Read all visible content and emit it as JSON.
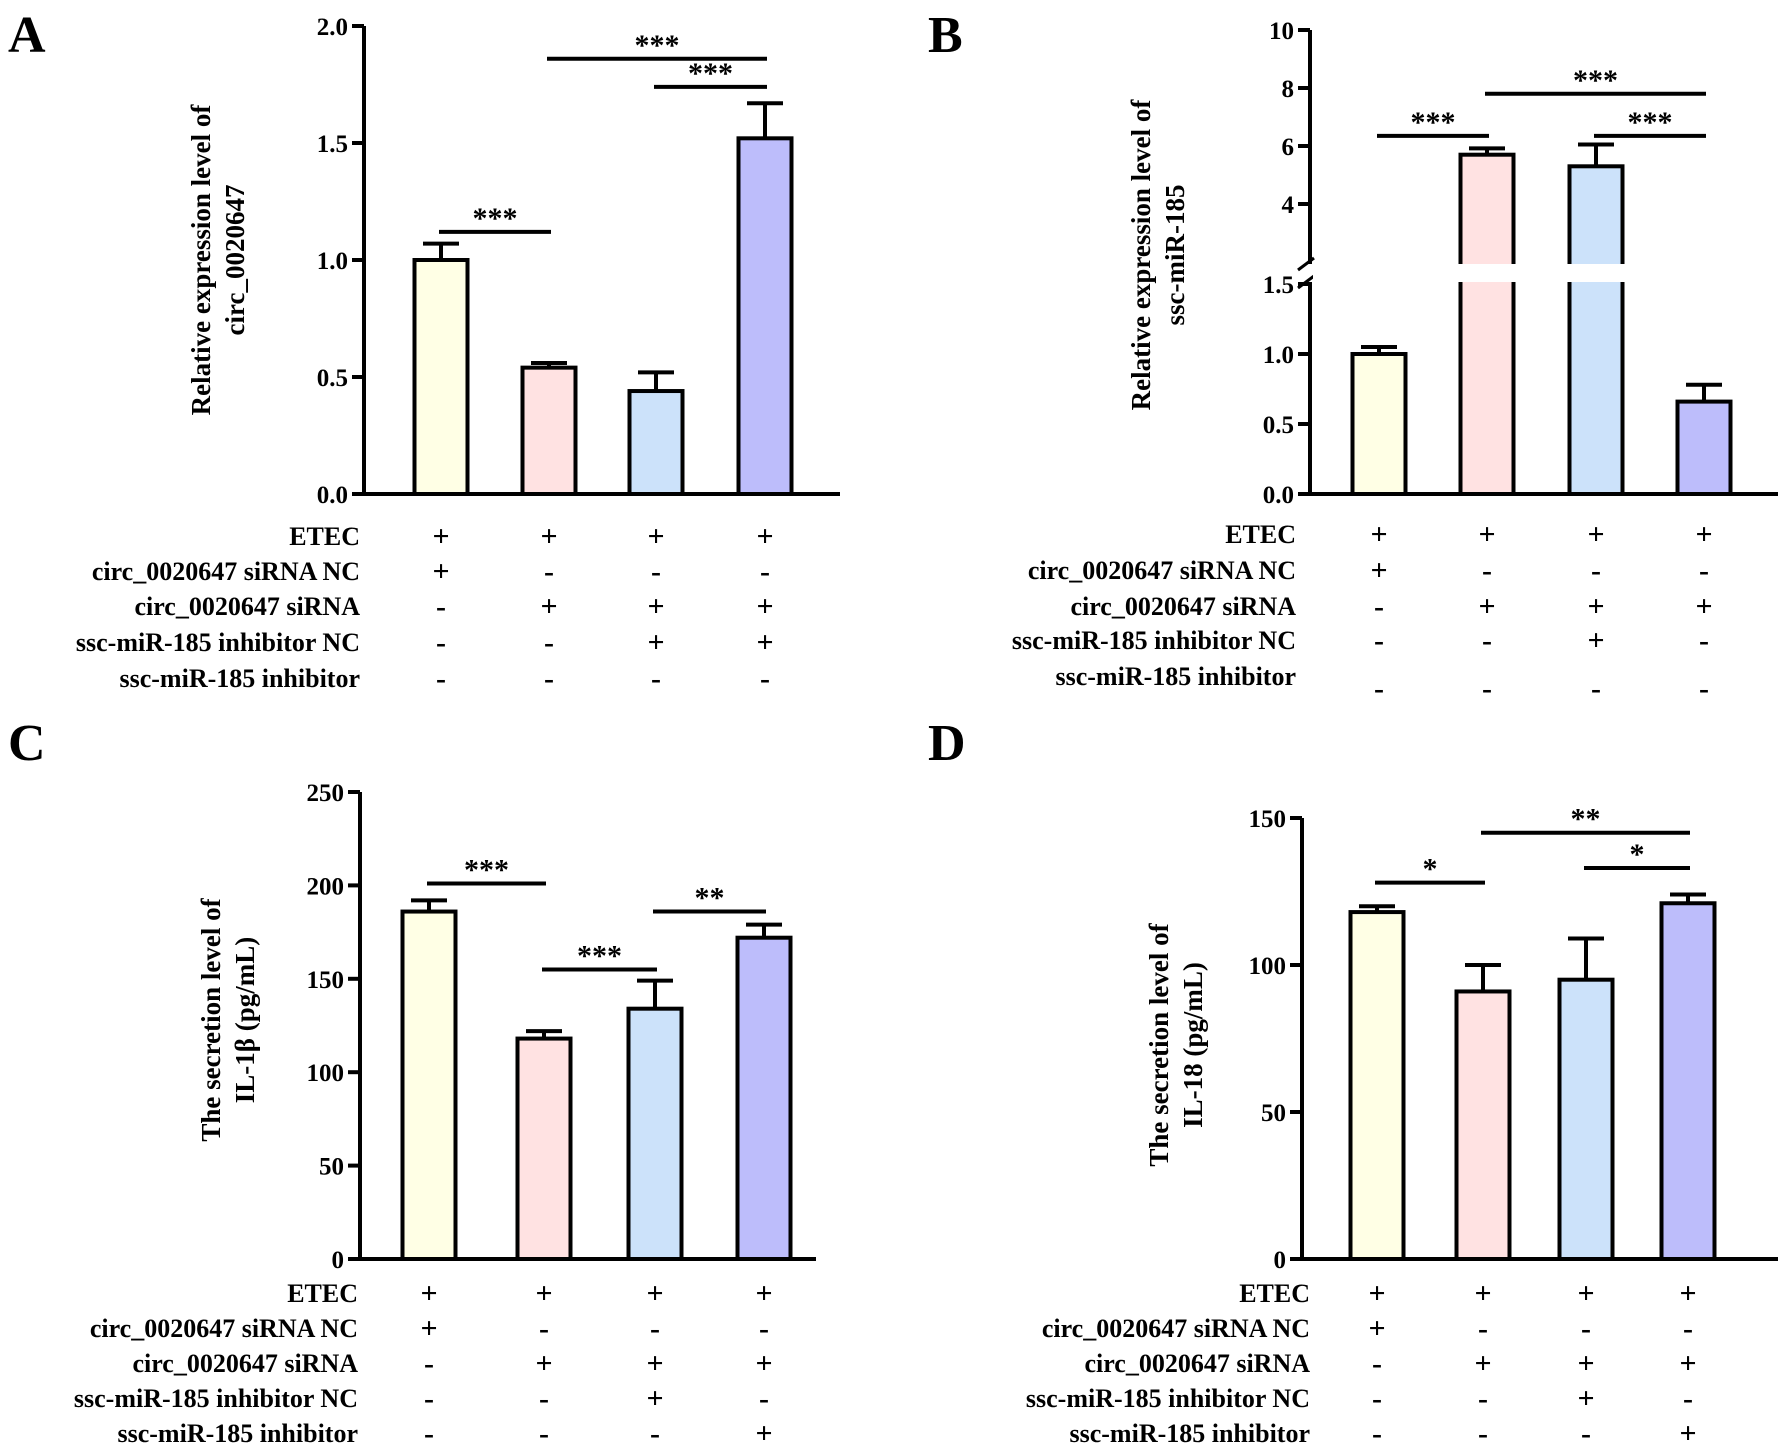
{
  "condition_labels": [
    "ETEC",
    "circ_0020647 siRNA NC",
    "circ_0020647 siRNA",
    "ssc-miR-185 inhibitor NC",
    "ssc-miR-185 inhibitor"
  ],
  "colors": {
    "bar_fills": [
      "#FFFFE5",
      "#FFE2E2",
      "#CCE2FA",
      "#BDBDFB"
    ],
    "stroke": "#000000"
  },
  "chart_data": [
    {
      "panel": "A",
      "type": "bar",
      "ylabel": [
        "Relative expression level of",
        "circ_0020647"
      ],
      "ylim": [
        0,
        2.0
      ],
      "yticks": [
        "0.0",
        "0.5",
        "1.0",
        "1.5",
        "2.0"
      ],
      "values": [
        1.0,
        0.54,
        0.44,
        1.52
      ],
      "errors": [
        0.07,
        0.02,
        0.08,
        0.15
      ],
      "matrix": [
        [
          "+",
          "+",
          "+",
          "+"
        ],
        [
          "+",
          "-",
          "-",
          "-"
        ],
        [
          "-",
          "+",
          "+",
          "+"
        ],
        [
          "-",
          "-",
          "+",
          "+"
        ],
        [
          "-",
          "-",
          "-",
          "-"
        ]
      ],
      "significance": [
        {
          "from": 0,
          "to": 1,
          "y": 1.12,
          "label": "***"
        },
        {
          "from": 1,
          "to": 3,
          "y": 1.86,
          "label": "***"
        },
        {
          "from": 2,
          "to": 3,
          "y": 1.74,
          "label": "***"
        }
      ]
    },
    {
      "panel": "B",
      "type": "bar",
      "broken_axis": true,
      "ylabel": [
        "Relative expression level of",
        "ssc-miR-185"
      ],
      "ylim_lower": [
        0,
        1.5
      ],
      "ylim_upper": [
        2,
        10
      ],
      "yticks_lower": [
        "0.0",
        "0.5",
        "1.0",
        "1.5"
      ],
      "yticks_upper": [
        "4",
        "6",
        "8",
        "10"
      ],
      "values": [
        1.0,
        5.7,
        5.3,
        0.66
      ],
      "errors": [
        0.05,
        0.22,
        0.75,
        0.12
      ],
      "matrix": [
        [
          "+",
          "+",
          "+",
          "+"
        ],
        [
          "+",
          "-",
          "-",
          "-"
        ],
        [
          "-",
          "+",
          "+",
          "+"
        ],
        [
          "-",
          "-",
          "+",
          "-"
        ],
        [
          "-",
          "-",
          "-",
          "-"
        ]
      ],
      "significance": [
        {
          "from": 0,
          "to": 1,
          "y": 6.35,
          "label": "***"
        },
        {
          "from": 1,
          "to": 3,
          "y": 7.8,
          "label": "***"
        },
        {
          "from": 2,
          "to": 3,
          "y": 6.35,
          "label": "***"
        }
      ]
    },
    {
      "panel": "C",
      "type": "bar",
      "ylabel": [
        "The secretion level of",
        "IL-1β (pg/mL)"
      ],
      "ylim": [
        0,
        250
      ],
      "yticks": [
        "0",
        "50",
        "100",
        "150",
        "200",
        "250"
      ],
      "values": [
        186,
        118,
        134,
        172
      ],
      "errors": [
        6,
        4,
        15,
        7
      ],
      "matrix": [
        [
          "+",
          "+",
          "+",
          "+"
        ],
        [
          "+",
          "-",
          "-",
          "-"
        ],
        [
          "-",
          "+",
          "+",
          "+"
        ],
        [
          "-",
          "-",
          "+",
          "-"
        ],
        [
          "-",
          "-",
          "-",
          "+"
        ]
      ],
      "significance": [
        {
          "from": 0,
          "to": 1,
          "y": 201,
          "label": "***"
        },
        {
          "from": 1,
          "to": 2,
          "y": 155,
          "label": "***"
        },
        {
          "from": 2,
          "to": 3,
          "y": 186,
          "label": "**"
        }
      ]
    },
    {
      "panel": "D",
      "type": "bar",
      "ylabel": [
        "The secretion level of",
        "IL-18 (pg/mL)"
      ],
      "ylim": [
        0,
        150
      ],
      "yticks": [
        "0",
        "50",
        "100",
        "150"
      ],
      "values": [
        118,
        91,
        95,
        121
      ],
      "errors": [
        2,
        9,
        14,
        3
      ],
      "matrix": [
        [
          "+",
          "+",
          "+",
          "+"
        ],
        [
          "+",
          "-",
          "-",
          "-"
        ],
        [
          "-",
          "+",
          "+",
          "+"
        ],
        [
          "-",
          "-",
          "+",
          "-"
        ],
        [
          "-",
          "-",
          "-",
          "+"
        ]
      ],
      "significance": [
        {
          "from": 0,
          "to": 1,
          "y": 128,
          "label": "*"
        },
        {
          "from": 1,
          "to": 3,
          "y": 145,
          "label": "**"
        },
        {
          "from": 2,
          "to": 3,
          "y": 133,
          "label": "*"
        }
      ]
    }
  ]
}
